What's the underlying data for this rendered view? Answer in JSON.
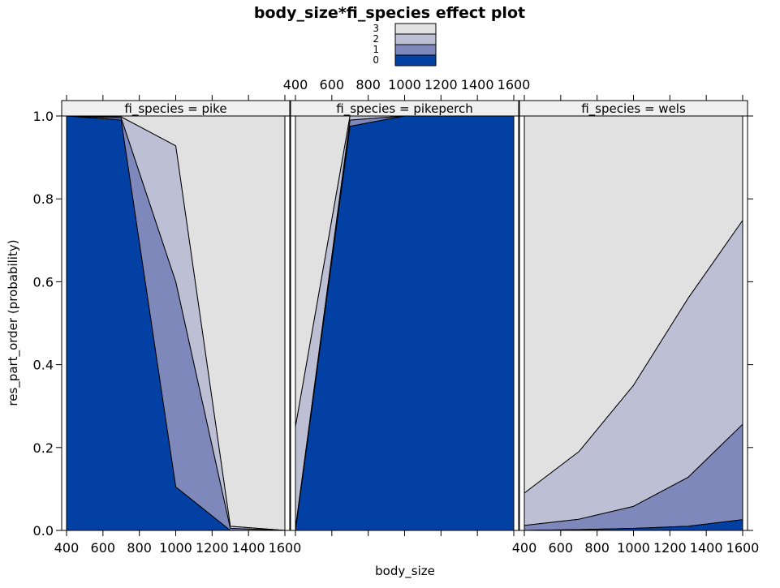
{
  "chart_data": {
    "type": "area",
    "title": "body_size*fi_species effect plot",
    "xlabel": "body_size",
    "ylabel": "res_part_order (probability)",
    "xlim": [
      400,
      1600
    ],
    "ylim": [
      0,
      1
    ],
    "x_ticks": [
      400,
      600,
      800,
      1000,
      1200,
      1400,
      1600
    ],
    "y_ticks": [
      0.0,
      0.2,
      0.4,
      0.6,
      0.8,
      1.0
    ],
    "y_tick_labels": [
      "0.0",
      "0.2",
      "0.4",
      "0.6",
      "0.8",
      "1.0"
    ],
    "legend": {
      "placement": "top",
      "levels": [
        "3",
        "2",
        "1",
        "0"
      ]
    },
    "colors": {
      "0": "#0240a3",
      "1": "#7e88ba",
      "2": "#bdc0d5",
      "3": "#e1e1e1",
      "strip_bg": "#f0f0f0"
    },
    "x": [
      400,
      700,
      1000,
      1300,
      1600
    ],
    "panels": [
      {
        "strip": "fi_species = pike",
        "cumulative": {
          "0": [
            1.0,
            0.99,
            0.105,
            0.0,
            0.0
          ],
          "1": [
            1.0,
            0.995,
            0.6,
            0.005,
            0.0
          ],
          "2": [
            1.0,
            0.998,
            0.928,
            0.01,
            0.0
          ]
        }
      },
      {
        "strip": "fi_species = pikeperch",
        "cumulative": {
          "0": [
            0.0,
            0.975,
            1.0,
            1.0,
            1.0
          ],
          "1": [
            0.005,
            0.99,
            1.0,
            1.0,
            1.0
          ],
          "2": [
            0.25,
            1.0,
            1.0,
            1.0,
            1.0
          ]
        }
      },
      {
        "strip": "fi_species = wels",
        "cumulative": {
          "0": [
            0.0,
            0.002,
            0.005,
            0.01,
            0.026
          ],
          "1": [
            0.012,
            0.027,
            0.058,
            0.128,
            0.256
          ],
          "2": [
            0.09,
            0.19,
            0.35,
            0.56,
            0.748
          ]
        }
      }
    ]
  }
}
